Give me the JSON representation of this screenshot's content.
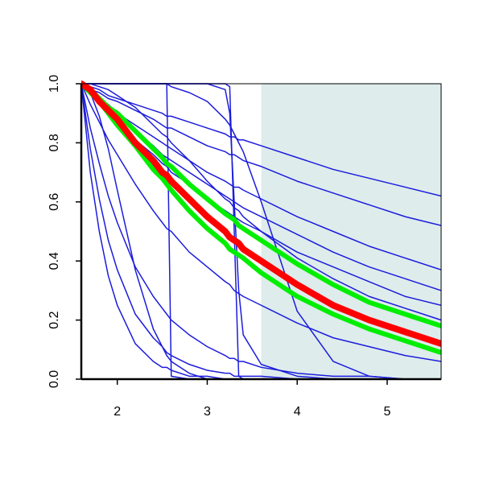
{
  "chart_data": {
    "type": "line",
    "x": [
      1.6,
      1.7,
      1.8,
      1.9,
      2.0,
      2.2,
      2.4,
      2.5,
      2.55,
      2.6,
      2.8,
      3.0,
      3.2,
      3.25,
      3.3,
      3.35,
      3.4,
      3.6,
      4.0,
      4.4,
      4.8,
      5.2,
      5.6
    ],
    "xlim": [
      1.6,
      5.6
    ],
    "xticks": [
      2,
      3,
      4,
      5
    ],
    "ylim": [
      0,
      1
    ],
    "yticks": [
      {
        "value": 0,
        "label": "0.0"
      },
      0.2,
      0.4,
      0.6,
      0.8,
      {
        "value": 1,
        "label": "1.0"
      }
    ],
    "shaded_region": {
      "x": [
        3.6,
        5.6
      ],
      "color": "#deecec"
    },
    "series": [
      {
        "color": "#1c1cdc",
        "width": 1.5,
        "values": [
          1,
          0.99,
          0.98,
          0.96,
          0.95,
          0.93,
          0.91,
          0.9,
          0.89,
          0.89,
          0.87,
          0.85,
          0.83,
          0.82,
          0.82,
          0.81,
          0.81,
          0.79,
          0.75,
          0.71,
          0.68,
          0.65,
          0.62
        ]
      },
      {
        "color": "#1c1cdc",
        "width": 1.5,
        "values": [
          1,
          0.98,
          0.97,
          0.95,
          0.94,
          0.91,
          0.88,
          0.86,
          0.85,
          0.85,
          0.82,
          0.79,
          0.77,
          0.76,
          0.76,
          0.75,
          0.74,
          0.72,
          0.67,
          0.63,
          0.59,
          0.55,
          0.52
        ]
      },
      {
        "color": "#1c1cdc",
        "width": 1.5,
        "values": [
          1,
          0.98,
          0.95,
          0.93,
          0.9,
          0.86,
          0.82,
          0.8,
          0.79,
          0.78,
          0.74,
          0.7,
          0.67,
          0.66,
          0.65,
          0.65,
          0.64,
          0.61,
          0.55,
          0.5,
          0.45,
          0.41,
          0.37
        ]
      },
      {
        "color": "#1c1cdc",
        "width": 1.5,
        "values": [
          1,
          0.97,
          0.94,
          0.91,
          0.89,
          0.84,
          0.79,
          0.76,
          0.75,
          0.74,
          0.7,
          0.66,
          0.62,
          0.61,
          0.6,
          0.59,
          0.58,
          0.55,
          0.49,
          0.43,
          0.38,
          0.34,
          0.3
        ]
      },
      {
        "color": "#1c1cdc",
        "width": 1.5,
        "values": [
          1,
          0.97,
          0.93,
          0.9,
          0.87,
          0.81,
          0.76,
          0.73,
          0.72,
          0.7,
          0.66,
          0.61,
          0.57,
          0.56,
          0.55,
          0.54,
          0.53,
          0.5,
          0.43,
          0.38,
          0.33,
          0.28,
          0.25
        ]
      },
      {
        "color": "#1c1cdc",
        "width": 1.5,
        "values": [
          1,
          1.0,
          0.99,
          0.98,
          0.96,
          0.92,
          0.86,
          0.83,
          0.82,
          0.8,
          0.74,
          0.67,
          0.61,
          0.6,
          0.58,
          0.57,
          0.55,
          0.5,
          0.41,
          0.34,
          0.28,
          0.24,
          0.2
        ]
      },
      {
        "color": "#1c1cdc",
        "width": 1.5,
        "values": [
          1,
          0.93,
          0.87,
          0.81,
          0.76,
          0.66,
          0.57,
          0.53,
          0.51,
          0.5,
          0.43,
          0.38,
          0.33,
          0.32,
          0.3,
          0.29,
          0.28,
          0.25,
          0.19,
          0.14,
          0.11,
          0.08,
          0.06
        ]
      },
      {
        "color": "#1c1cdc",
        "width": 1.5,
        "values": [
          1,
          0.85,
          0.73,
          0.62,
          0.53,
          0.38,
          0.28,
          0.24,
          0.22,
          0.2,
          0.15,
          0.11,
          0.08,
          0.07,
          0.07,
          0.06,
          0.06,
          0.04,
          0.02,
          0.01,
          0.01,
          0,
          0
        ]
      },
      {
        "color": "#1c1cdc",
        "width": 1.5,
        "values": [
          1,
          0.78,
          0.61,
          0.47,
          0.37,
          0.22,
          0.14,
          0.11,
          0.09,
          0.08,
          0.05,
          0.03,
          0.02,
          0.02,
          0.01,
          0.01,
          0.01,
          0.01,
          0,
          0,
          0,
          0,
          0
        ]
      },
      {
        "color": "#1c1cdc",
        "width": 1.5,
        "values": [
          1,
          0.7,
          0.5,
          0.35,
          0.25,
          0.12,
          0.06,
          0.04,
          0.04,
          0.03,
          0.01,
          0.01,
          0,
          0,
          0,
          0,
          0,
          0,
          0,
          0,
          0,
          0,
          0
        ]
      },
      {
        "color": "#1c1cdc",
        "width": 1.5,
        "values": [
          1,
          0.97,
          0.89,
          0.78,
          0.64,
          0.37,
          0.17,
          0.11,
          0.08,
          0.06,
          0.02,
          0,
          0,
          0,
          0,
          0,
          0,
          0,
          0,
          0,
          0,
          0,
          0
        ]
      },
      {
        "color": "#1c1cdc",
        "width": 1.5,
        "values": [
          1,
          1,
          1,
          1,
          1,
          1,
          1,
          1,
          1,
          0.01,
          0,
          0,
          0,
          0,
          0,
          0,
          0,
          0,
          0,
          0,
          0,
          0,
          0
        ]
      },
      {
        "color": "#1c1cdc",
        "width": 1.5,
        "values": [
          1,
          1,
          1,
          1,
          1,
          1,
          1,
          1,
          1,
          1,
          1,
          1,
          1,
          0.99,
          0.5,
          0.01,
          0,
          0,
          0,
          0,
          0,
          0,
          0
        ]
      },
      {
        "color": "#1c1cdc",
        "width": 1.5,
        "values": [
          1,
          1,
          1,
          1,
          1,
          1,
          1,
          1,
          1,
          1,
          1,
          1,
          0.98,
          0.9,
          0.6,
          0.3,
          0.15,
          0.05,
          0.01,
          0,
          0,
          0,
          0
        ]
      },
      {
        "color": "#1c1cdc",
        "width": 1.5,
        "values": [
          1,
          1,
          1,
          1,
          1,
          1,
          1,
          1,
          1,
          0.99,
          0.97,
          0.94,
          0.88,
          0.86,
          0.83,
          0.8,
          0.77,
          0.6,
          0.23,
          0.06,
          0.01,
          0,
          0
        ]
      },
      {
        "color": "#00ee00",
        "width": 6,
        "values": [
          1,
          0.98,
          0.95,
          0.92,
          0.9,
          0.84,
          0.78,
          0.75,
          0.73,
          0.72,
          0.66,
          0.61,
          0.56,
          0.55,
          0.54,
          0.52,
          0.51,
          0.47,
          0.39,
          0.32,
          0.26,
          0.22,
          0.18
        ]
      },
      {
        "color": "#00ee00",
        "width": 6,
        "values": [
          1,
          0.97,
          0.94,
          0.9,
          0.86,
          0.79,
          0.71,
          0.68,
          0.66,
          0.64,
          0.57,
          0.51,
          0.46,
          0.44,
          0.43,
          0.42,
          0.41,
          0.36,
          0.28,
          0.22,
          0.17,
          0.13,
          0.09
        ]
      },
      {
        "color": "#ff0000",
        "width": 8,
        "values": [
          1,
          0.98,
          0.94,
          0.91,
          0.88,
          0.8,
          0.74,
          0.7,
          0.69,
          0.67,
          0.61,
          0.55,
          0.5,
          0.48,
          0.47,
          0.46,
          0.44,
          0.4,
          0.32,
          0.25,
          0.2,
          0.16,
          0.12
        ]
      }
    ]
  }
}
